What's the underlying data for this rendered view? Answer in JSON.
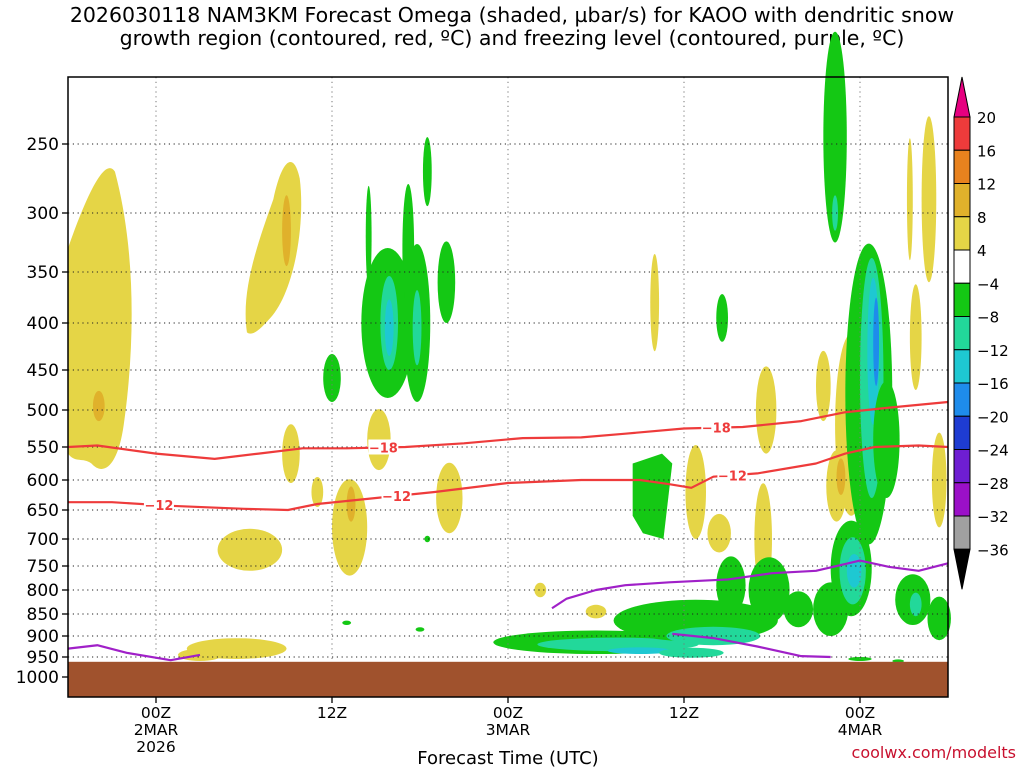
{
  "title_line1": "2026030118 NAM3KM Forecast Omega (shaded, µbar/s) for KAOO with dendritic snow",
  "title_line2": "growth region (contoured, red, ºC) and freezing level (contoured, purple, ºC)",
  "credit": "coolwx.com/modelts",
  "chart_data": {
    "type": "heatmap",
    "title": "2026030118 NAM3KM Forecast Omega (shaded, µbar/s) for KAOO with dendritic snow growth region (contoured, red, ºC) and freezing level (contoured, purple, ºC)",
    "xlabel": "Forecast Time (UTC)",
    "ylabel": "",
    "x_ticks": [
      {
        "hour": 6,
        "label": "00Z",
        "sub1": "2MAR",
        "sub2": "2026"
      },
      {
        "hour": 18,
        "label": "12Z",
        "sub1": "",
        "sub2": ""
      },
      {
        "hour": 30,
        "label": "00Z",
        "sub1": "3MAR",
        "sub2": ""
      },
      {
        "hour": 42,
        "label": "12Z",
        "sub1": "",
        "sub2": ""
      },
      {
        "hour": 54,
        "label": "00Z",
        "sub1": "4MAR",
        "sub2": ""
      }
    ],
    "xlim_hours": [
      0,
      60
    ],
    "y_levels_hpa": [
      "250",
      "300",
      "350",
      "400",
      "450",
      "500",
      "550",
      "600",
      "650",
      "700",
      "750",
      "800",
      "850",
      "900",
      "950",
      "1000"
    ],
    "ylim_hpa": [
      200,
      1020
    ],
    "ground_level_hpa": 962,
    "colorbar": {
      "labels": [
        "20",
        "16",
        "12",
        "8",
        "4",
        "−4",
        "−8",
        "−12",
        "−16",
        "−20",
        "−24",
        "−28",
        "−32",
        "−36"
      ],
      "colors": [
        "#e60080",
        "#ee3b3b",
        "#e8821e",
        "#e0b12b",
        "#e5d546",
        "#ffffff",
        "#14c814",
        "#22d89a",
        "#1ec8d2",
        "#1e8ceb",
        "#1e3cd2",
        "#6e1ed2",
        "#9b10c8",
        "#a0a0a0",
        "#000000"
      ]
    },
    "contours": [
      {
        "name": "-18",
        "color": "#ee3b3b",
        "label_hours": [
          21.5,
          44.2
        ],
        "points": [
          [
            0,
            550
          ],
          [
            2,
            548
          ],
          [
            6,
            560
          ],
          [
            10,
            568
          ],
          [
            13,
            560
          ],
          [
            16,
            552
          ],
          [
            19,
            552
          ],
          [
            23,
            550
          ],
          [
            27,
            545
          ],
          [
            31,
            538
          ],
          [
            35,
            537
          ],
          [
            38,
            532
          ],
          [
            42,
            525
          ],
          [
            46,
            523
          ],
          [
            50,
            515
          ],
          [
            53,
            503
          ],
          [
            56,
            497
          ],
          [
            60,
            490
          ]
        ]
      },
      {
        "name": "-12",
        "color": "#ee3b3b",
        "label_hours": [
          6.2,
          22.4,
          45.3
        ],
        "points": [
          [
            0,
            637
          ],
          [
            3,
            637
          ],
          [
            7,
            643
          ],
          [
            12,
            648
          ],
          [
            15,
            650
          ],
          [
            17,
            640
          ],
          [
            21,
            630
          ],
          [
            25,
            620
          ],
          [
            30,
            605
          ],
          [
            35,
            600
          ],
          [
            39,
            600
          ],
          [
            41,
            607
          ],
          [
            42.5,
            613
          ],
          [
            44,
            595
          ],
          [
            47,
            590
          ],
          [
            51,
            575
          ],
          [
            53,
            560
          ],
          [
            55,
            550
          ],
          [
            58,
            548
          ],
          [
            60,
            550
          ]
        ]
      },
      {
        "name": "0",
        "color": "#a020c8",
        "label_hours": [
          49.7,
          38.0
        ],
        "points": [
          [
            0,
            930
          ],
          [
            2,
            922
          ],
          [
            4,
            940
          ],
          [
            7,
            958
          ],
          [
            9,
            945
          ]
        ]
      },
      {
        "name": "0",
        "color": "#a020c8",
        "label_hours": [],
        "points": [
          [
            41.2,
            895
          ],
          [
            44,
            905
          ],
          [
            47,
            925
          ],
          [
            50,
            948
          ],
          [
            52,
            950
          ]
        ]
      },
      {
        "name": "0",
        "color": "#a020c8",
        "label_hours": [],
        "points": [
          [
            33,
            838
          ],
          [
            34,
            818
          ],
          [
            36,
            800
          ],
          [
            38,
            790
          ],
          [
            41,
            784
          ],
          [
            45,
            778
          ],
          [
            48,
            765
          ],
          [
            51,
            760
          ],
          [
            54,
            740
          ],
          [
            56,
            752
          ],
          [
            58,
            760
          ],
          [
            60,
            745
          ]
        ]
      }
    ],
    "omega_regions": [
      {
        "range": "4 to 8",
        "cx_hours": 1.8,
        "cy_hpa": 430,
        "rx_hours": 2.2,
        "ry_hpa": 170
      },
      {
        "range": "4 to 8",
        "cx_hours": 14.5,
        "cy_hpa": 310,
        "rx_hours": 2.0,
        "ry_hpa": 60
      },
      {
        "range": "-4 to -8",
        "cx_hours": 21.8,
        "cy_hpa": 400,
        "rx_hours": 1.6,
        "ry_hpa": 80
      },
      {
        "range": "-4 to -8",
        "cx_hours": 36.0,
        "cy_hpa": 915,
        "rx_hours": 6.5,
        "ry_hpa": 28
      },
      {
        "range": "-4 to -8",
        "cx_hours": 42.8,
        "cy_hpa": 860,
        "rx_hours": 5.5,
        "ry_hpa": 45
      },
      {
        "range": "-4 to -8",
        "cx_hours": 54.6,
        "cy_hpa": 500,
        "rx_hours": 1.6,
        "ry_hpa": 230
      }
    ]
  }
}
